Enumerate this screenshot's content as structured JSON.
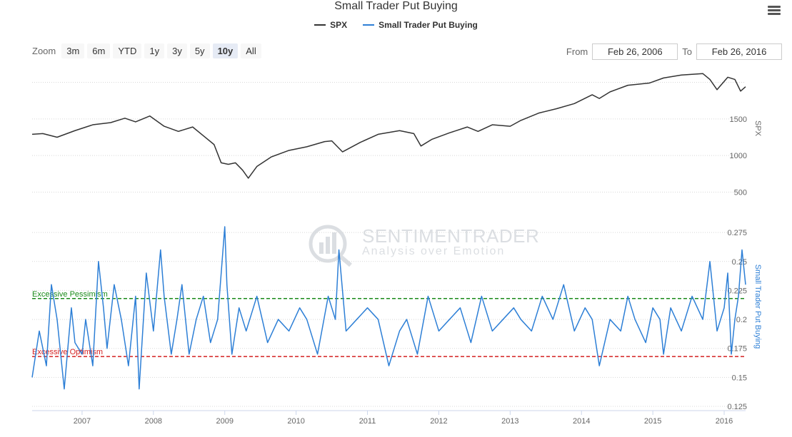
{
  "title": "Small Trader Put Buying",
  "legend": [
    {
      "name": "SPX",
      "color": "#333333"
    },
    {
      "name": "Small Trader Put Buying",
      "color": "#2d7fd6"
    }
  ],
  "zoom": {
    "label": "Zoom",
    "buttons": [
      "3m",
      "6m",
      "YTD",
      "1y",
      "3y",
      "5y",
      "10y",
      "All"
    ],
    "active": "10y"
  },
  "range": {
    "from_label": "From",
    "from_value": "Feb 26, 2006",
    "to_label": "To",
    "to_value": "Feb 26, 2016"
  },
  "watermark": {
    "line1": "SENTIMENTRADER",
    "line2": "Analysis over Emotion"
  },
  "chart_data": [
    {
      "type": "line",
      "name": "SPX",
      "ylabel": "SPX",
      "yticks": [
        500,
        1000,
        1500
      ],
      "ylim": [
        300,
        2200
      ],
      "xlim": [
        2006.15,
        2016.15
      ],
      "color": "#333333",
      "x": [
        2006.15,
        2006.3,
        2006.5,
        2006.75,
        2007.0,
        2007.25,
        2007.45,
        2007.6,
        2007.8,
        2008.0,
        2008.2,
        2008.4,
        2008.55,
        2008.7,
        2008.8,
        2008.9,
        2009.0,
        2009.1,
        2009.18,
        2009.3,
        2009.5,
        2009.75,
        2010.0,
        2010.25,
        2010.35,
        2010.5,
        2010.75,
        2011.0,
        2011.3,
        2011.5,
        2011.6,
        2011.75,
        2012.0,
        2012.25,
        2012.4,
        2012.6,
        2012.85,
        2013.0,
        2013.25,
        2013.5,
        2013.75,
        2014.0,
        2014.1,
        2014.25,
        2014.5,
        2014.8,
        2015.0,
        2015.25,
        2015.4,
        2015.55,
        2015.65,
        2015.75,
        2015.9,
        2016.0,
        2016.08,
        2016.15
      ],
      "y": [
        1290,
        1300,
        1250,
        1340,
        1420,
        1450,
        1510,
        1460,
        1540,
        1400,
        1330,
        1390,
        1270,
        1150,
        900,
        880,
        900,
        800,
        690,
        850,
        980,
        1070,
        1120,
        1190,
        1200,
        1050,
        1180,
        1290,
        1340,
        1300,
        1130,
        1220,
        1310,
        1390,
        1330,
        1420,
        1400,
        1480,
        1580,
        1640,
        1710,
        1830,
        1780,
        1870,
        1960,
        1990,
        2060,
        2100,
        2110,
        2120,
        2040,
        1900,
        2070,
        2040,
        1880,
        1940
      ]
    },
    {
      "type": "line",
      "name": "Small Trader Put Buying",
      "ylabel": "Small Trader Put Buying",
      "yticks": [
        0.125,
        0.15,
        0.175,
        0.2,
        0.225,
        0.25,
        0.275
      ],
      "ylim": [
        0.125,
        0.28
      ],
      "xlim": [
        2006.15,
        2016.15
      ],
      "xticks": [
        2007,
        2008,
        2009,
        2010,
        2011,
        2012,
        2013,
        2014,
        2015,
        2016
      ],
      "color": "#2d7fd6",
      "x": [
        2006.15,
        2006.25,
        2006.35,
        2006.42,
        2006.5,
        2006.6,
        2006.7,
        2006.75,
        2006.85,
        2006.9,
        2007.0,
        2007.08,
        2007.15,
        2007.2,
        2007.3,
        2007.4,
        2007.5,
        2007.6,
        2007.65,
        2007.75,
        2007.85,
        2007.95,
        2008.0,
        2008.1,
        2008.18,
        2008.25,
        2008.35,
        2008.45,
        2008.55,
        2008.65,
        2008.75,
        2008.85,
        2008.88,
        2008.95,
        2009.05,
        2009.15,
        2009.3,
        2009.45,
        2009.6,
        2009.75,
        2009.9,
        2010.0,
        2010.15,
        2010.3,
        2010.4,
        2010.45,
        2010.55,
        2010.7,
        2010.85,
        2011.0,
        2011.15,
        2011.3,
        2011.4,
        2011.55,
        2011.7,
        2011.85,
        2012.0,
        2012.15,
        2012.3,
        2012.45,
        2012.6,
        2012.75,
        2012.9,
        2013.0,
        2013.15,
        2013.3,
        2013.45,
        2013.6,
        2013.75,
        2013.9,
        2014.0,
        2014.1,
        2014.25,
        2014.4,
        2014.5,
        2014.6,
        2014.75,
        2014.85,
        2014.95,
        2015.0,
        2015.1,
        2015.25,
        2015.4,
        2015.55,
        2015.65,
        2015.75,
        2015.85,
        2015.9,
        2015.95,
        2016.0,
        2016.05,
        2016.1,
        2016.15
      ],
      "y": [
        0.15,
        0.19,
        0.16,
        0.23,
        0.2,
        0.14,
        0.21,
        0.18,
        0.17,
        0.2,
        0.16,
        0.25,
        0.21,
        0.175,
        0.23,
        0.2,
        0.16,
        0.22,
        0.14,
        0.24,
        0.19,
        0.26,
        0.22,
        0.17,
        0.2,
        0.23,
        0.17,
        0.2,
        0.22,
        0.18,
        0.2,
        0.28,
        0.23,
        0.17,
        0.21,
        0.19,
        0.22,
        0.18,
        0.2,
        0.19,
        0.21,
        0.2,
        0.17,
        0.22,
        0.2,
        0.26,
        0.19,
        0.2,
        0.21,
        0.2,
        0.16,
        0.19,
        0.2,
        0.17,
        0.22,
        0.19,
        0.2,
        0.21,
        0.18,
        0.22,
        0.19,
        0.2,
        0.21,
        0.2,
        0.19,
        0.22,
        0.2,
        0.23,
        0.19,
        0.21,
        0.2,
        0.16,
        0.2,
        0.19,
        0.22,
        0.2,
        0.18,
        0.21,
        0.2,
        0.17,
        0.21,
        0.19,
        0.22,
        0.2,
        0.25,
        0.19,
        0.21,
        0.24,
        0.17,
        0.2,
        0.22,
        0.26,
        0.23
      ]
    }
  ],
  "reference_lines": [
    {
      "label": "Excessive Pessimism",
      "value": 0.218,
      "color": "#1a8a1a"
    },
    {
      "label": "Excessive Optimism",
      "value": 0.168,
      "color": "#d42020"
    }
  ]
}
